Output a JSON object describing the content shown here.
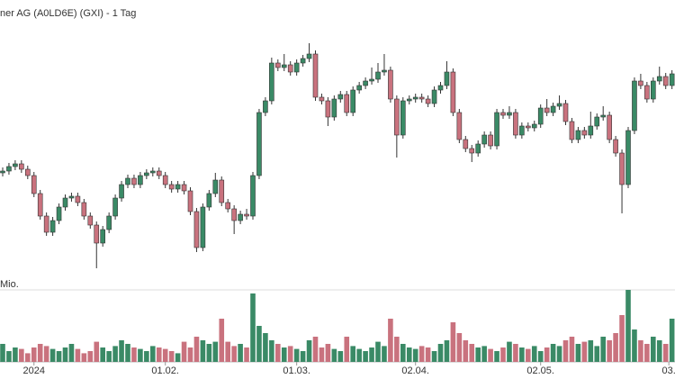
{
  "chart_data": {
    "type": "candlestick",
    "title": "ner AG (A0LD6E) (GXI) - 1 Tag",
    "volume_label": "Mio.",
    "up_color": "#3a8a66",
    "down_color": "#c9727e",
    "ylim": [
      0,
      300
    ],
    "volume_lim": [
      0,
      1
    ],
    "open": [
      108,
      110,
      115,
      118,
      112,
      105,
      85,
      60,
      42,
      55,
      70,
      80,
      82,
      75,
      60,
      50,
      30,
      45,
      60,
      80,
      95,
      102,
      95,
      105,
      108,
      110,
      105,
      95,
      90,
      95,
      88,
      65,
      25,
      70,
      85,
      100,
      75,
      68,
      55,
      62,
      60,
      105,
      175,
      188,
      230,
      225,
      228,
      220,
      230,
      235,
      240,
      192,
      188,
      170,
      190,
      195,
      175,
      200,
      205,
      210,
      212,
      220,
      222,
      190,
      150,
      188,
      190,
      192,
      190,
      185,
      200,
      205,
      220,
      175,
      145,
      135,
      130,
      140,
      150,
      138,
      175,
      172,
      175,
      150,
      160,
      158,
      162,
      180,
      175,
      182,
      185,
      165,
      145,
      155,
      150,
      160,
      170,
      172,
      145,
      130,
      95,
      155,
      210,
      205,
      190,
      210,
      215,
      205
    ],
    "high": [
      114,
      119,
      122,
      122,
      116,
      109,
      89,
      64,
      59,
      74,
      84,
      86,
      86,
      79,
      64,
      54,
      49,
      64,
      84,
      99,
      106,
      106,
      109,
      112,
      114,
      114,
      109,
      99,
      99,
      99,
      92,
      69,
      74,
      89,
      108,
      104,
      79,
      72,
      66,
      68,
      109,
      179,
      192,
      236,
      234,
      240,
      232,
      234,
      239,
      252,
      244,
      196,
      192,
      194,
      199,
      199,
      204,
      209,
      214,
      225,
      230,
      240,
      226,
      194,
      192,
      194,
      196,
      196,
      194,
      204,
      209,
      232,
      224,
      179,
      149,
      139,
      144,
      154,
      154,
      179,
      179,
      182,
      179,
      164,
      164,
      166,
      184,
      190,
      186,
      194,
      189,
      169,
      159,
      159,
      176,
      174,
      182,
      176,
      149,
      134,
      159,
      214,
      218,
      209,
      214,
      226,
      219,
      222
    ],
    "low": [
      104,
      106,
      111,
      108,
      101,
      81,
      56,
      38,
      38,
      51,
      66,
      76,
      71,
      56,
      46,
      2,
      26,
      41,
      56,
      76,
      91,
      91,
      91,
      101,
      104,
      101,
      91,
      86,
      86,
      84,
      61,
      20,
      21,
      66,
      81,
      71,
      64,
      40,
      51,
      56,
      56,
      101,
      171,
      184,
      221,
      221,
      216,
      216,
      226,
      231,
      188,
      184,
      160,
      166,
      186,
      171,
      171,
      196,
      201,
      206,
      208,
      216,
      186,
      125,
      146,
      184,
      186,
      186,
      181,
      181,
      196,
      201,
      171,
      141,
      131,
      120,
      126,
      136,
      134,
      134,
      168,
      168,
      146,
      146,
      154,
      154,
      158,
      171,
      171,
      178,
      161,
      141,
      141,
      146,
      146,
      156,
      166,
      141,
      126,
      63,
      91,
      151,
      201,
      186,
      186,
      206,
      201,
      201
    ],
    "close": [
      110,
      115,
      118,
      112,
      105,
      85,
      60,
      42,
      55,
      70,
      80,
      82,
      75,
      60,
      50,
      30,
      45,
      60,
      80,
      95,
      102,
      95,
      105,
      108,
      110,
      105,
      95,
      90,
      95,
      88,
      65,
      25,
      70,
      85,
      100,
      75,
      68,
      55,
      62,
      60,
      105,
      175,
      188,
      230,
      225,
      228,
      220,
      230,
      235,
      240,
      192,
      188,
      170,
      190,
      195,
      175,
      200,
      205,
      210,
      212,
      220,
      222,
      190,
      150,
      188,
      190,
      192,
      190,
      185,
      200,
      205,
      220,
      175,
      145,
      135,
      130,
      140,
      150,
      138,
      175,
      172,
      175,
      150,
      160,
      158,
      162,
      180,
      175,
      182,
      185,
      165,
      145,
      155,
      150,
      160,
      170,
      172,
      145,
      130,
      95,
      155,
      210,
      205,
      190,
      210,
      215,
      205,
      218
    ],
    "volume": [
      0.25,
      0.15,
      0.2,
      0.18,
      0.12,
      0.2,
      0.25,
      0.22,
      0.18,
      0.15,
      0.2,
      0.25,
      0.18,
      0.12,
      0.15,
      0.28,
      0.2,
      0.15,
      0.22,
      0.3,
      0.25,
      0.2,
      0.18,
      0.15,
      0.22,
      0.2,
      0.18,
      0.15,
      0.12,
      0.28,
      0.2,
      0.35,
      0.3,
      0.25,
      0.28,
      0.6,
      0.28,
      0.22,
      0.25,
      0.2,
      0.95,
      0.5,
      0.4,
      0.3,
      0.25,
      0.2,
      0.22,
      0.18,
      0.15,
      0.3,
      0.35,
      0.2,
      0.25,
      0.18,
      0.15,
      0.35,
      0.22,
      0.18,
      0.15,
      0.2,
      0.28,
      0.22,
      0.6,
      0.35,
      0.25,
      0.2,
      0.18,
      0.22,
      0.2,
      0.15,
      0.25,
      0.3,
      0.55,
      0.4,
      0.3,
      0.25,
      0.2,
      0.22,
      0.18,
      0.15,
      0.2,
      0.28,
      0.25,
      0.2,
      0.18,
      0.22,
      0.15,
      0.2,
      0.25,
      0.22,
      0.3,
      0.35,
      0.25,
      0.28,
      0.3,
      0.22,
      0.35,
      0.3,
      0.4,
      0.65,
      1.0,
      0.45,
      0.3,
      0.25,
      0.35,
      0.3,
      0.25,
      0.6
    ],
    "xticks": [
      {
        "value": 5,
        "label": "2024"
      },
      {
        "value": 26,
        "label": "01.02."
      },
      {
        "value": 47,
        "label": "01.03."
      },
      {
        "value": 66,
        "label": "02.04."
      },
      {
        "value": 86,
        "label": "02.05."
      },
      {
        "value": 106.5,
        "label": "03."
      }
    ]
  }
}
